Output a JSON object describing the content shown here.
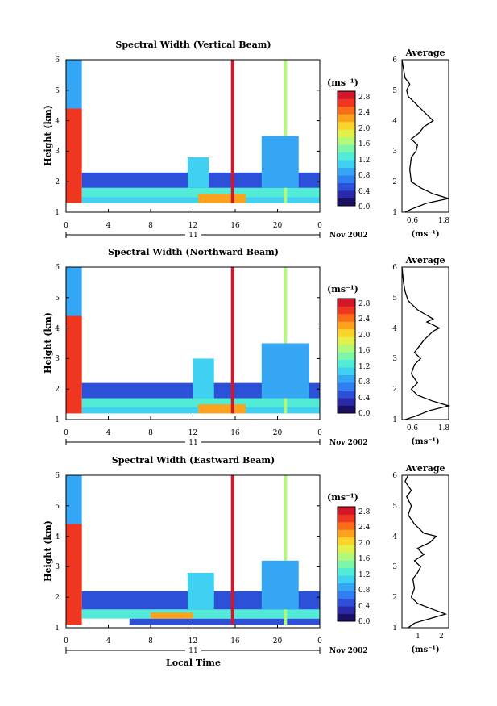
{
  "figure": {
    "time_axis_label": "Local Time",
    "cb_unit": "(ms⁻¹)"
  },
  "colormap": [
    "#1b0f63",
    "#2a2aa8",
    "#2d50d8",
    "#2f7ff0",
    "#35a6f4",
    "#3fd0f2",
    "#52ecd6",
    "#7df6a8",
    "#b2f87a",
    "#e2f04c",
    "#fad42a",
    "#fca21d",
    "#f96d1a",
    "#ee3621",
    "#d3162a"
  ],
  "panels": [
    {
      "title": "Spectral Width (Vertical Beam)",
      "ylabel": "Height (km)",
      "yticks": [
        "1",
        "2",
        "3",
        "4",
        "5",
        "6"
      ],
      "xticks": [
        "0",
        "4",
        "8",
        "12",
        "16",
        "20",
        "0"
      ],
      "day_label": "11",
      "month_label": "Nov 2002",
      "colorbar_ticks": [
        "0.0",
        "0.4",
        "0.8",
        "1.2",
        "1.6",
        "2.0",
        "2.4",
        "2.8"
      ],
      "avg_title": "Average",
      "avg_xticks": [
        "0.6",
        "1.8"
      ],
      "avg_yticks": [
        "1",
        "2",
        "3",
        "4",
        "5",
        "6"
      ],
      "avg_unit": "(ms⁻¹)"
    },
    {
      "title": "Spectral Width (Northward Beam)",
      "ylabel": "Height (km)",
      "yticks": [
        "1",
        "2",
        "3",
        "4",
        "5",
        "6"
      ],
      "xticks": [
        "0",
        "4",
        "8",
        "12",
        "16",
        "20",
        "0"
      ],
      "day_label": "11",
      "month_label": "Nov 2002",
      "colorbar_ticks": [
        "0.0",
        "0.4",
        "0.8",
        "1.2",
        "1.6",
        "2.0",
        "2.4",
        "2.8"
      ],
      "avg_title": "Average",
      "avg_xticks": [
        "0.6",
        "1.8"
      ],
      "avg_yticks": [
        "1",
        "2",
        "3",
        "4",
        "5",
        "6"
      ],
      "avg_unit": "(ms⁻¹)"
    },
    {
      "title": "Spectral Width (Eastward Beam)",
      "ylabel": "Height (km)",
      "yticks": [
        "1",
        "2",
        "3",
        "4",
        "5",
        "6"
      ],
      "xticks": [
        "0",
        "4",
        "8",
        "12",
        "16",
        "20",
        "0"
      ],
      "day_label": "11",
      "month_label": "Nov 2002",
      "colorbar_ticks": [
        "0.0",
        "0.4",
        "0.8",
        "1.2",
        "1.6",
        "2.0",
        "2.4",
        "2.8"
      ],
      "avg_title": "Average",
      "avg_xticks": [
        "1",
        "2"
      ],
      "avg_yticks": [
        "1",
        "2",
        "3",
        "4",
        "5",
        "6"
      ],
      "avg_unit": "(ms⁻¹)"
    }
  ],
  "chart_data": [
    {
      "type": "heatmap",
      "title": "Spectral Width (Vertical Beam)",
      "xlabel": "",
      "ylabel": "Height (km)",
      "xlim": [
        0,
        24
      ],
      "ylim": [
        1,
        6
      ],
      "colorbar": {
        "label": "(ms⁻¹)",
        "range": [
          0.0,
          3.0
        ]
      },
      "features": [
        {
          "t0": 0.0,
          "t1": 1.5,
          "h0": 1.3,
          "h1": 4.4,
          "value": 2.6
        },
        {
          "t0": 0.0,
          "t1": 1.5,
          "h0": 4.4,
          "h1": 6.0,
          "value": 0.9
        },
        {
          "t0": 1.5,
          "t1": 24.0,
          "h0": 1.3,
          "h1": 1.5,
          "value": 1.0
        },
        {
          "t0": 1.5,
          "t1": 24.0,
          "h0": 1.5,
          "h1": 1.8,
          "value": 1.3
        },
        {
          "t0": 1.5,
          "t1": 24.0,
          "h0": 1.8,
          "h1": 2.3,
          "value": 0.6
        },
        {
          "t0": 12.5,
          "t1": 17.0,
          "h0": 1.3,
          "h1": 1.6,
          "value": 2.2
        },
        {
          "t0": 15.6,
          "t1": 15.9,
          "h0": 1.3,
          "h1": 6.0,
          "value": 2.9
        },
        {
          "t0": 20.6,
          "t1": 20.9,
          "h0": 1.3,
          "h1": 6.0,
          "value": 1.6
        },
        {
          "t0": 11.5,
          "t1": 13.5,
          "h0": 1.8,
          "h1": 2.8,
          "value": 1.1
        },
        {
          "t0": 18.5,
          "t1": 22.0,
          "h0": 1.8,
          "h1": 3.5,
          "value": 0.9
        }
      ],
      "average_profile": {
        "xlim": [
          0.3,
          1.8
        ],
        "points": [
          [
            0.4,
            1.0
          ],
          [
            0.6,
            1.1
          ],
          [
            1.1,
            1.3
          ],
          [
            1.8,
            1.45
          ],
          [
            1.3,
            1.6
          ],
          [
            0.9,
            1.8
          ],
          [
            0.6,
            2.0
          ],
          [
            0.55,
            2.4
          ],
          [
            0.6,
            2.8
          ],
          [
            0.75,
            3.0
          ],
          [
            0.8,
            3.2
          ],
          [
            0.6,
            3.4
          ],
          [
            0.85,
            3.6
          ],
          [
            1.0,
            3.8
          ],
          [
            1.3,
            4.0
          ],
          [
            1.2,
            4.1
          ],
          [
            1.0,
            4.3
          ],
          [
            0.7,
            4.6
          ],
          [
            0.5,
            4.8
          ],
          [
            0.45,
            5.0
          ],
          [
            0.55,
            5.2
          ],
          [
            0.4,
            5.4
          ],
          [
            0.35,
            5.7
          ],
          [
            0.3,
            6.0
          ]
        ]
      }
    },
    {
      "type": "heatmap",
      "title": "Spectral Width (Northward Beam)",
      "xlabel": "",
      "ylabel": "Height (km)",
      "xlim": [
        0,
        24
      ],
      "ylim": [
        1,
        6
      ],
      "colorbar": {
        "label": "(ms⁻¹)",
        "range": [
          0.0,
          3.0
        ]
      },
      "features": [
        {
          "t0": 0.0,
          "t1": 1.5,
          "h0": 1.2,
          "h1": 4.4,
          "value": 2.6
        },
        {
          "t0": 0.0,
          "t1": 1.5,
          "h0": 4.4,
          "h1": 6.0,
          "value": 0.9
        },
        {
          "t0": 1.5,
          "t1": 24.0,
          "h0": 1.2,
          "h1": 1.4,
          "value": 1.0
        },
        {
          "t0": 1.5,
          "t1": 24.0,
          "h0": 1.4,
          "h1": 1.7,
          "value": 1.4
        },
        {
          "t0": 1.5,
          "t1": 24.0,
          "h0": 1.7,
          "h1": 2.2,
          "value": 0.6
        },
        {
          "t0": 12.5,
          "t1": 17.0,
          "h0": 1.2,
          "h1": 1.5,
          "value": 2.3
        },
        {
          "t0": 15.6,
          "t1": 15.9,
          "h0": 1.2,
          "h1": 6.0,
          "value": 2.9
        },
        {
          "t0": 20.6,
          "t1": 20.9,
          "h0": 1.2,
          "h1": 6.0,
          "value": 1.6
        },
        {
          "t0": 12.0,
          "t1": 14.0,
          "h0": 1.7,
          "h1": 3.0,
          "value": 1.1
        },
        {
          "t0": 18.5,
          "t1": 23.0,
          "h0": 1.7,
          "h1": 3.5,
          "value": 0.9
        }
      ],
      "average_profile": {
        "xlim": [
          0.3,
          1.8
        ],
        "points": [
          [
            0.4,
            1.0
          ],
          [
            0.7,
            1.1
          ],
          [
            1.2,
            1.3
          ],
          [
            1.8,
            1.45
          ],
          [
            1.3,
            1.6
          ],
          [
            0.8,
            1.8
          ],
          [
            0.6,
            2.0
          ],
          [
            0.8,
            2.2
          ],
          [
            0.6,
            2.5
          ],
          [
            0.7,
            2.8
          ],
          [
            0.9,
            3.0
          ],
          [
            0.7,
            3.2
          ],
          [
            0.85,
            3.4
          ],
          [
            1.0,
            3.6
          ],
          [
            1.3,
            3.9
          ],
          [
            1.5,
            4.0
          ],
          [
            1.1,
            4.2
          ],
          [
            1.3,
            4.3
          ],
          [
            0.8,
            4.6
          ],
          [
            0.5,
            4.9
          ],
          [
            0.4,
            5.2
          ],
          [
            0.35,
            5.5
          ],
          [
            0.3,
            6.0
          ]
        ]
      }
    },
    {
      "type": "heatmap",
      "title": "Spectral Width (Eastward Beam)",
      "xlabel": "Local Time",
      "ylabel": "Height (km)",
      "xlim": [
        0,
        24
      ],
      "ylim": [
        1,
        6
      ],
      "colorbar": {
        "label": "(ms⁻¹)",
        "range": [
          0.0,
          3.0
        ]
      },
      "features": [
        {
          "t0": 0.0,
          "t1": 1.5,
          "h0": 1.1,
          "h1": 4.4,
          "value": 2.6
        },
        {
          "t0": 0.0,
          "t1": 1.5,
          "h0": 4.4,
          "h1": 6.0,
          "value": 0.9
        },
        {
          "t0": 6.0,
          "t1": 24.0,
          "h0": 1.1,
          "h1": 1.3,
          "value": 0.6
        },
        {
          "t0": 1.5,
          "t1": 24.0,
          "h0": 1.3,
          "h1": 1.6,
          "value": 1.3
        },
        {
          "t0": 1.5,
          "t1": 24.0,
          "h0": 1.6,
          "h1": 2.2,
          "value": 0.6
        },
        {
          "t0": 8.0,
          "t1": 12.0,
          "h0": 1.3,
          "h1": 1.5,
          "value": 2.2
        },
        {
          "t0": 15.6,
          "t1": 15.9,
          "h0": 1.1,
          "h1": 6.0,
          "value": 2.9
        },
        {
          "t0": 20.6,
          "t1": 20.9,
          "h0": 1.1,
          "h1": 6.0,
          "value": 1.6
        },
        {
          "t0": 11.5,
          "t1": 14.0,
          "h0": 1.6,
          "h1": 2.8,
          "value": 1.1
        },
        {
          "t0": 18.5,
          "t1": 22.0,
          "h0": 1.6,
          "h1": 3.2,
          "value": 0.9
        }
      ],
      "average_profile": {
        "xlim": [
          0.6,
          2.1
        ],
        "points": [
          [
            0.8,
            1.0
          ],
          [
            1.0,
            1.15
          ],
          [
            1.5,
            1.3
          ],
          [
            2.0,
            1.45
          ],
          [
            1.6,
            1.6
          ],
          [
            1.1,
            1.8
          ],
          [
            0.9,
            2.0
          ],
          [
            1.0,
            2.3
          ],
          [
            0.95,
            2.6
          ],
          [
            1.1,
            2.8
          ],
          [
            1.2,
            3.0
          ],
          [
            1.0,
            3.2
          ],
          [
            1.3,
            3.4
          ],
          [
            1.1,
            3.6
          ],
          [
            1.5,
            3.8
          ],
          [
            1.7,
            4.0
          ],
          [
            1.3,
            4.1
          ],
          [
            1.0,
            4.4
          ],
          [
            0.8,
            4.7
          ],
          [
            0.9,
            5.0
          ],
          [
            0.75,
            5.3
          ],
          [
            0.9,
            5.5
          ],
          [
            0.7,
            5.8
          ],
          [
            0.8,
            6.0
          ]
        ]
      }
    }
  ]
}
